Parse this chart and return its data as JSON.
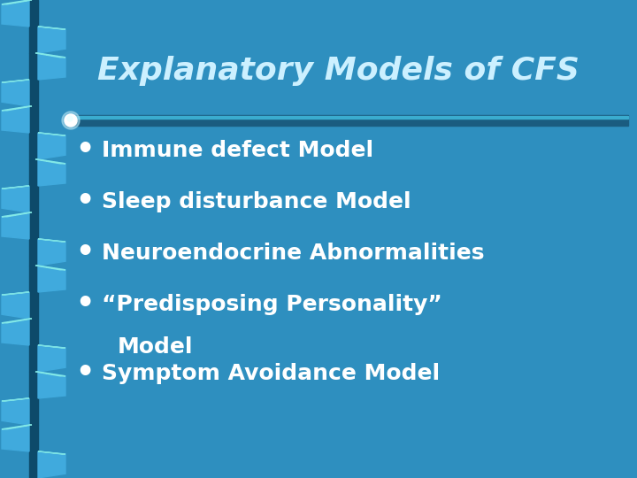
{
  "title": "Explanatory Models of CFS",
  "bg_color": "#2E8FBF",
  "title_color": "#CCF0FF",
  "text_color": "#FFFFFF",
  "divider_color": "#1A5C80",
  "bullet_items_line1": [
    "Immune defect Model",
    "Sleep disturbance Model",
    "Neuroendocrine Abnormalities",
    "“Predisposing Personality”",
    "Symptom Avoidance Model"
  ],
  "bullet_items_line2": [
    null,
    null,
    null,
    "Model",
    null
  ],
  "title_fontsize": 26,
  "bullet_fontsize": 18,
  "ribbon_dark": "#0D4A6A",
  "ribbon_light": "#88EEE8",
  "ribbon_mid": "#40AADD",
  "ribbon_shadow": "#1A70A0"
}
